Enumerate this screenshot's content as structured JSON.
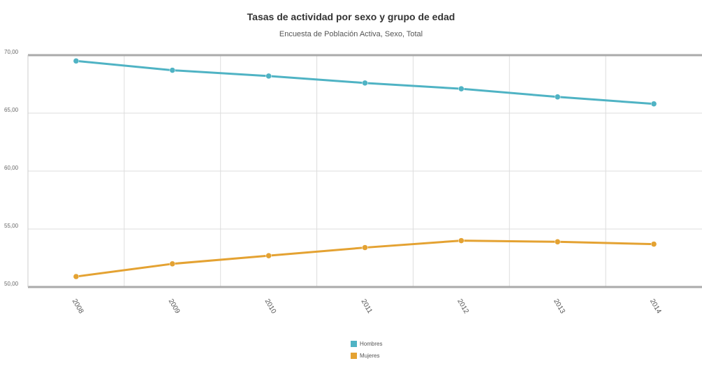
{
  "chart_data": {
    "type": "line",
    "title": "Tasas de actividad por sexo y grupo de edad",
    "subtitle": "Encuesta de Población Activa, Sexo, Total",
    "xlabel": "",
    "ylabel": "",
    "categories": [
      "2008",
      "2009",
      "2010",
      "2011",
      "2012",
      "2013",
      "2014"
    ],
    "ylim": [
      50,
      70
    ],
    "yticks": [
      "50,00",
      "55,00",
      "60,00",
      "65,00",
      "70,00"
    ],
    "series": [
      {
        "name": "Hombres",
        "color": "#4fb3c4",
        "values": [
          69.5,
          68.7,
          68.2,
          67.6,
          67.1,
          66.4,
          65.8
        ]
      },
      {
        "name": "Mujeres",
        "color": "#e4a232",
        "values": [
          50.9,
          52.0,
          52.7,
          53.4,
          54.0,
          53.9,
          53.7
        ]
      }
    ],
    "grid": true,
    "legend": "bottom-center"
  }
}
